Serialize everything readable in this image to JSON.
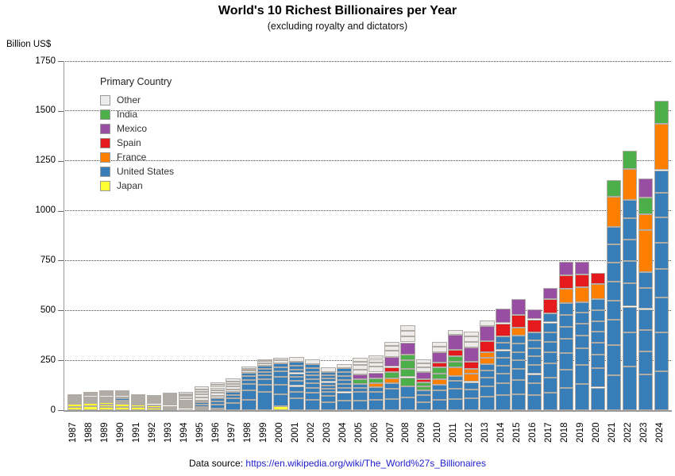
{
  "header": {
    "title": "World's 10 Richest Billionaires per Year",
    "subtitle": "(excluding royalty and dictators)"
  },
  "axes": {
    "y_unit_label": "Billion US$"
  },
  "legend": {
    "title": "Primary Country",
    "items": [
      {
        "label": "Other",
        "color": "#ececec"
      },
      {
        "label": "India",
        "color": "#4daf4a"
      },
      {
        "label": "Mexico",
        "color": "#984ea3"
      },
      {
        "label": "Spain",
        "color": "#e41a1c"
      },
      {
        "label": "France",
        "color": "#ff7f00"
      },
      {
        "label": "United States",
        "color": "#377eb8"
      },
      {
        "label": "Japan",
        "color": "#ffff33"
      }
    ]
  },
  "footer": {
    "prefix": "Data source:",
    "url": "https://en.wikipedia.org/wiki/The_World%27s_Billionaires"
  },
  "chart_data": {
    "type": "bar",
    "stacked": true,
    "title": "World's 10 Richest Billionaires per Year",
    "subtitle": "(excluding royalty and dictators)",
    "ylabel": "Billion US$",
    "ylim": [
      0,
      1750
    ],
    "yticks": [
      0,
      250,
      500,
      750,
      1000,
      1250,
      1500,
      1750
    ],
    "grid": "dotted horizontal at each 250",
    "legend_position": "upper-left inside plot",
    "note": "Each bar stacks the individual fortunes (Billion US$) of the year's 10 richest people, grouped and colored by primary country; each person is one bordered block.",
    "stack_order_bottom_to_top": [
      "Japan",
      "United States",
      "France",
      "India",
      "Spain",
      "Mexico",
      "Other"
    ],
    "colors": {
      "Japan": "#ffff33",
      "United States": "#377eb8",
      "France": "#ff7f00",
      "India": "#4daf4a",
      "Spain": "#e41a1c",
      "Mexico": "#984ea3",
      "Other": "#edecea"
    },
    "years": [
      {
        "year": 1987,
        "segments": {
          "Japan": [
            18,
            14,
            8,
            7
          ],
          "United States": [
            8,
            4
          ],
          "Other": [
            5,
            5,
            4.5,
            4.5
          ]
        }
      },
      {
        "year": 1988,
        "segments": {
          "Japan": [
            19,
            18,
            6,
            5,
            4
          ],
          "United States": [
            9,
            4.5
          ],
          "Other": [
            9,
            6,
            5,
            4.5
          ]
        }
      },
      {
        "year": 1989,
        "segments": {
          "Japan": [
            15,
            14,
            9,
            7,
            7
          ],
          "United States": [
            8,
            4
          ],
          "Other": [
            10,
            9,
            8,
            7
          ]
        }
      },
      {
        "year": 1990,
        "segments": {
          "Japan": [
            16,
            15,
            7,
            6,
            5
          ],
          "United States": [
            10,
            5
          ],
          "Other": [
            10,
            10,
            9,
            8
          ]
        }
      },
      {
        "year": 1991,
        "segments": {
          "Japan": [
            15,
            14,
            5,
            4
          ],
          "United States": [
            8,
            5
          ],
          "Other": [
            8,
            8,
            7,
            7
          ]
        }
      },
      {
        "year": 1992,
        "segments": {
          "Japan": [
            13,
            10,
            7
          ],
          "United States": [
            10,
            9
          ],
          "Other": [
            6,
            5,
            5,
            5,
            4
          ]
        }
      },
      {
        "year": 1993,
        "segments": {
          "Japan": [
            8,
            4
          ],
          "United States": [
            10,
            9,
            8,
            7.5
          ],
          "Other": [
            9,
            8,
            8,
            7.5,
            7
          ]
        }
      },
      {
        "year": 1994,
        "segments": {
          "Japan": [
            6
          ],
          "United States": [
            9.4,
            9.2,
            8,
            7
          ],
          "Mexico": [
            6.6
          ],
          "Other": [
            12,
            12,
            11,
            10
          ]
        }
      },
      {
        "year": 1995,
        "segments": {
          "Japan": [
            9,
            6
          ],
          "United States": [
            12.9,
            10.7,
            9.5
          ],
          "Other": [
            15,
            15,
            14,
            13,
            12.7
          ]
        }
      },
      {
        "year": 1996,
        "segments": {
          "Japan": [
            9.2
          ],
          "United States": [
            18.5,
            15.5,
            15
          ],
          "Other": [
            14.5,
            14,
            13.5,
            13,
            12.7,
            12.3
          ]
        }
      },
      {
        "year": 1997,
        "segments": {
          "United States": [
            36.4,
            23.2,
            16,
            14.4
          ],
          "Other": [
            14,
            14,
            13.5,
            13.3,
            13.2
          ]
        }
      },
      {
        "year": 1998,
        "segments": {
          "United States": [
            51,
            48,
            33,
            21,
            18,
            16
          ],
          "Other": [
            11,
            10,
            10
          ]
        }
      },
      {
        "year": 1999,
        "segments": {
          "United States": [
            90,
            36,
            30,
            19.5,
            16.5,
            15.5,
            15
          ],
          "Other": [
            12,
            11,
            10.5
          ]
        }
      },
      {
        "year": 2000,
        "segments": {
          "Japan": [
            19.4
          ],
          "United States": [
            60,
            47,
            40,
            28,
            20,
            18.5
          ],
          "Other": [
            16,
            14
          ]
        }
      },
      {
        "year": 2001,
        "segments": {
          "United States": [
            58.7,
            32.3,
            30.4,
            26,
            18.8,
            18.8,
            18.8,
            18.8,
            18.8
          ],
          "Other": [
            25
          ]
        }
      },
      {
        "year": 2002,
        "segments": {
          "United States": [
            52.8,
            35,
            25.2,
            23.5,
            18.5,
            18.5,
            18.5,
            18.5,
            18.5
          ],
          "Other": [
            26.8
          ]
        }
      },
      {
        "year": 2003,
        "segments": {
          "United States": [
            40.7,
            30.5,
            20.1,
            16.6,
            16.5,
            16.5,
            16.5,
            16.5,
            16.5
          ],
          "Other": [
            25.6
          ]
        }
      },
      {
        "year": 2004,
        "segments": {
          "United States": [
            46.6,
            42.9,
            21,
            20,
            20,
            20,
            20,
            18.7
          ],
          "Other": [
            23
          ]
        }
      },
      {
        "year": 2005,
        "segments": {
          "United States": [
            46.5,
            44,
            21,
            18.4
          ],
          "India": [
            25
          ],
          "Mexico": [
            23.8
          ],
          "Other": [
            23.7,
            23,
            18.5,
            18.2
          ]
        }
      },
      {
        "year": 2006,
        "segments": {
          "United States": [
            50,
            42,
            22
          ],
          "France": [
            21.5
          ],
          "India": [
            23.5
          ],
          "Mexico": [
            30
          ],
          "Other": [
            28,
            20,
            19.6,
            18.8
          ]
        }
      },
      {
        "year": 2007,
        "segments": {
          "United States": [
            56,
            52,
            26.5
          ],
          "France": [
            26
          ],
          "India": [
            32
          ],
          "Spain": [
            24
          ],
          "Mexico": [
            49
          ],
          "Other": [
            33,
            23,
            22
          ]
        }
      },
      {
        "year": 2008,
        "segments": {
          "United States": [
            62,
            58
          ],
          "India": [
            45,
            43,
            42,
            30
          ],
          "Mexico": [
            60
          ],
          "Other": [
            31,
            28,
            27
          ]
        }
      },
      {
        "year": 2009,
        "segments": {
          "United States": [
            40,
            37,
            22.5
          ],
          "India": [
            19.5,
            19.3
          ],
          "Spain": [
            18.3
          ],
          "Mexico": [
            35
          ],
          "Other": [
            22,
            21.5,
            18.8
          ]
        }
      },
      {
        "year": 2010,
        "segments": {
          "United States": [
            53,
            47,
            28
          ],
          "France": [
            27.5
          ],
          "India": [
            29,
            28.7
          ],
          "Spain": [
            25
          ],
          "Mexico": [
            53.5
          ],
          "Other": [
            27,
            23.5
          ]
        }
      },
      {
        "year": 2011,
        "segments": {
          "United States": [
            56,
            50,
            39.5,
            26.5
          ],
          "France": [
            41
          ],
          "India": [
            31.1,
            27
          ],
          "Spain": [
            31
          ],
          "Mexico": [
            74
          ],
          "Other": [
            26
          ]
        }
      },
      {
        "year": 2012,
        "segments": {
          "United States": [
            61,
            44,
            36
          ],
          "France": [
            41,
            24
          ],
          "Spain": [
            37.5
          ],
          "Mexico": [
            69
          ],
          "Other": [
            30,
            26,
            25.5
          ]
        }
      },
      {
        "year": 2013,
        "segments": {
          "United States": [
            67,
            53.5,
            43,
            34,
            34
          ],
          "France": [
            30,
            29
          ],
          "Spain": [
            57
          ],
          "Mexico": [
            73
          ],
          "Other": [
            31
          ]
        }
      },
      {
        "year": 2014,
        "segments": {
          "United States": [
            76,
            58.2,
            48,
            40,
            40,
            38,
            36.7,
            34.7
          ],
          "Spain": [
            64
          ],
          "Mexico": [
            72
          ]
        }
      },
      {
        "year": 2015,
        "segments": {
          "United States": [
            79.2,
            72.7,
            54.3,
            42.9,
            42.9,
            41.7,
            40.6
          ],
          "France": [
            40.1
          ],
          "Spain": [
            64.5
          ],
          "Mexico": [
            77.1
          ]
        }
      },
      {
        "year": 2016,
        "segments": {
          "United States": [
            75,
            60.8,
            45.2,
            44.6,
            43.6,
            40,
            39.6,
            39.6
          ],
          "Spain": [
            67
          ],
          "Mexico": [
            50
          ]
        }
      },
      {
        "year": 2017,
        "segments": {
          "United States": [
            86,
            75.6,
            72.8,
            56,
            52.2,
            48.3,
            48.3,
            47.5
          ],
          "Spain": [
            71.3
          ],
          "Mexico": [
            54.5
          ]
        }
      },
      {
        "year": 2018,
        "segments": {
          "United States": [
            112,
            90,
            84,
            71,
            60,
            60,
            58.5
          ],
          "France": [
            72
          ],
          "Spain": [
            70
          ],
          "Mexico": [
            67.1
          ]
        }
      },
      {
        "year": 2019,
        "segments": {
          "United States": [
            131,
            96.5,
            82.5,
            62.5,
            62.3,
            55.5,
            50.8
          ],
          "France": [
            76
          ],
          "Spain": [
            62.7
          ],
          "Mexico": [
            64
          ]
        }
      },
      {
        "year": 2020,
        "segments": {
          "United States": [
            113,
            98,
            67.5,
            59,
            54.7,
            54.6,
            54.4,
            54.1
          ],
          "France": [
            76
          ],
          "Spain": [
            55.1
          ]
        }
      },
      {
        "year": 2021,
        "segments": {
          "United States": [
            177,
            151,
            124,
            97,
            96,
            93,
            91.5,
            89
          ],
          "France": [
            150
          ],
          "India": [
            84.5
          ]
        }
      },
      {
        "year": 2022,
        "segments": {
          "United States": [
            219,
            171,
            129,
            118,
            111,
            107,
            106,
            91.4
          ],
          "France": [
            158
          ],
          "India": [
            90.7
          ]
        }
      },
      {
        "year": 2023,
        "segments": {
          "United States": [
            180,
            114,
            107,
            106,
            104,
            80.7
          ],
          "France": [
            211,
            80.5
          ],
          "India": [
            83.4
          ],
          "Mexico": [
            93
          ]
        }
      },
      {
        "year": 2024,
        "segments": {
          "United States": [
            195,
            194,
            177,
            141,
            133,
            128,
            121,
            114
          ],
          "France": [
            233
          ],
          "India": [
            116
          ]
        }
      }
    ]
  }
}
